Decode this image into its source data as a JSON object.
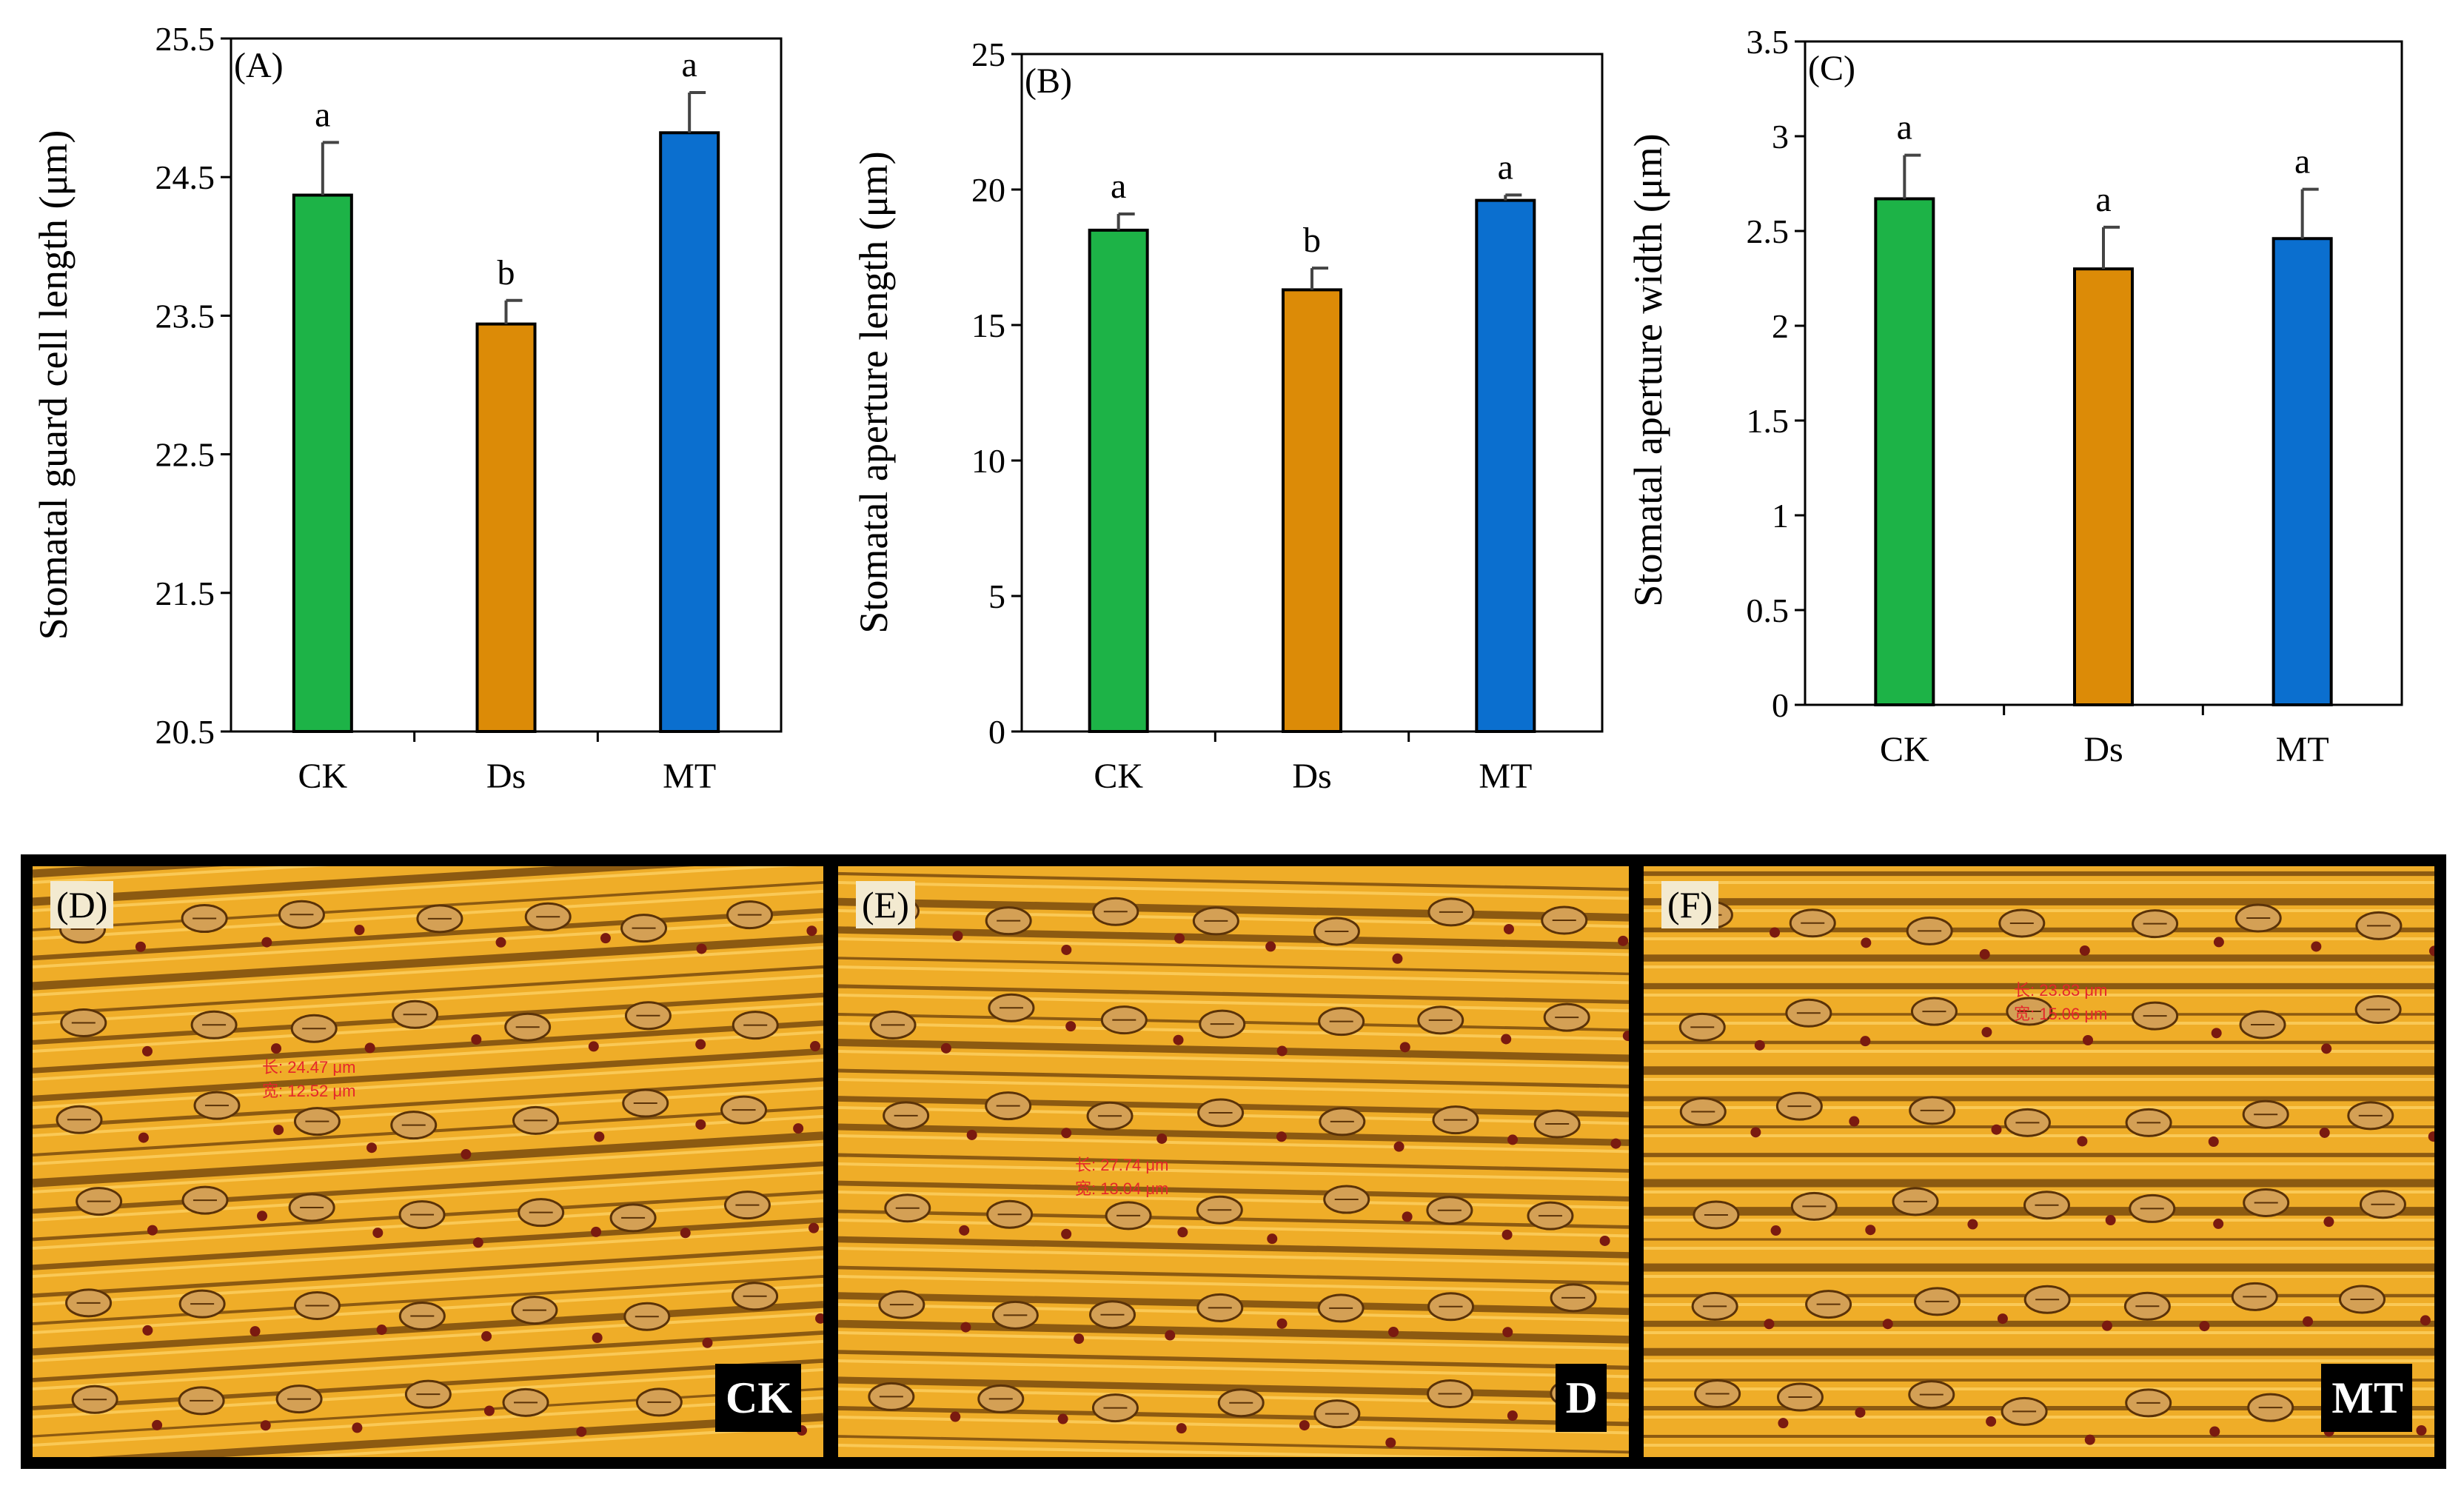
{
  "chart_data": [
    {
      "type": "bar",
      "panel": "(A)",
      "categories": [
        "CK",
        "Ds",
        "MT"
      ],
      "values": [
        24.37,
        23.44,
        24.82
      ],
      "errors": [
        0.38,
        0.17,
        0.29
      ],
      "letters": [
        "a",
        "b",
        "a"
      ],
      "colors": [
        "#1db347",
        "#dc8b07",
        "#0b6fcf"
      ],
      "ylabel": "Stomatal guard cell length (μm)",
      "ylim": [
        20.5,
        25.5
      ],
      "yticks": [
        "20.5",
        "21.5",
        "22.5",
        "23.5",
        "24.5",
        "25.5"
      ]
    },
    {
      "type": "bar",
      "panel": "(B)",
      "categories": [
        "CK",
        "Ds",
        "MT"
      ],
      "values": [
        18.5,
        16.3,
        19.6
      ],
      "errors": [
        0.6,
        0.8,
        0.2
      ],
      "letters": [
        "a",
        "b",
        "a"
      ],
      "colors": [
        "#1db347",
        "#dc8b07",
        "#0b6fcf"
      ],
      "ylabel": "Stomatal aperture length (μm)",
      "ylim": [
        0,
        25
      ],
      "yticks": [
        "0",
        "5",
        "10",
        "15",
        "20",
        "25"
      ]
    },
    {
      "type": "bar",
      "panel": "(C)",
      "categories": [
        "CK",
        "Ds",
        "MT"
      ],
      "values": [
        2.67,
        2.3,
        2.46
      ],
      "errors": [
        0.23,
        0.22,
        0.26
      ],
      "letters": [
        "a",
        "a",
        "a"
      ],
      "colors": [
        "#1db347",
        "#dc8b07",
        "#0b6fcf"
      ],
      "ylabel": "Stomatal aperture width (μm)",
      "ylim": [
        0,
        3.5
      ],
      "yticks": [
        "0",
        "0.5",
        "1",
        "1.5",
        "2",
        "2.5",
        "3",
        "3.5"
      ]
    }
  ],
  "photos": [
    {
      "panel": "(D)",
      "tag": "CK",
      "measure_1": "长: 24.47 μm",
      "measure_2": "宽: 12.52 μm"
    },
    {
      "panel": "(E)",
      "tag": "D",
      "measure_1": "长: 27.74 μm",
      "measure_2": "宽: 13.04 μm"
    },
    {
      "panel": "(F)",
      "tag": "MT",
      "measure_1": "长: 23.83 μm",
      "measure_2": "宽: 15.06 μm"
    }
  ],
  "colors": {
    "photo_bg": "#efad28",
    "photo_stripe": "#6b3f0a",
    "stomata": "#d4a055",
    "dot": "#7a1a10"
  }
}
